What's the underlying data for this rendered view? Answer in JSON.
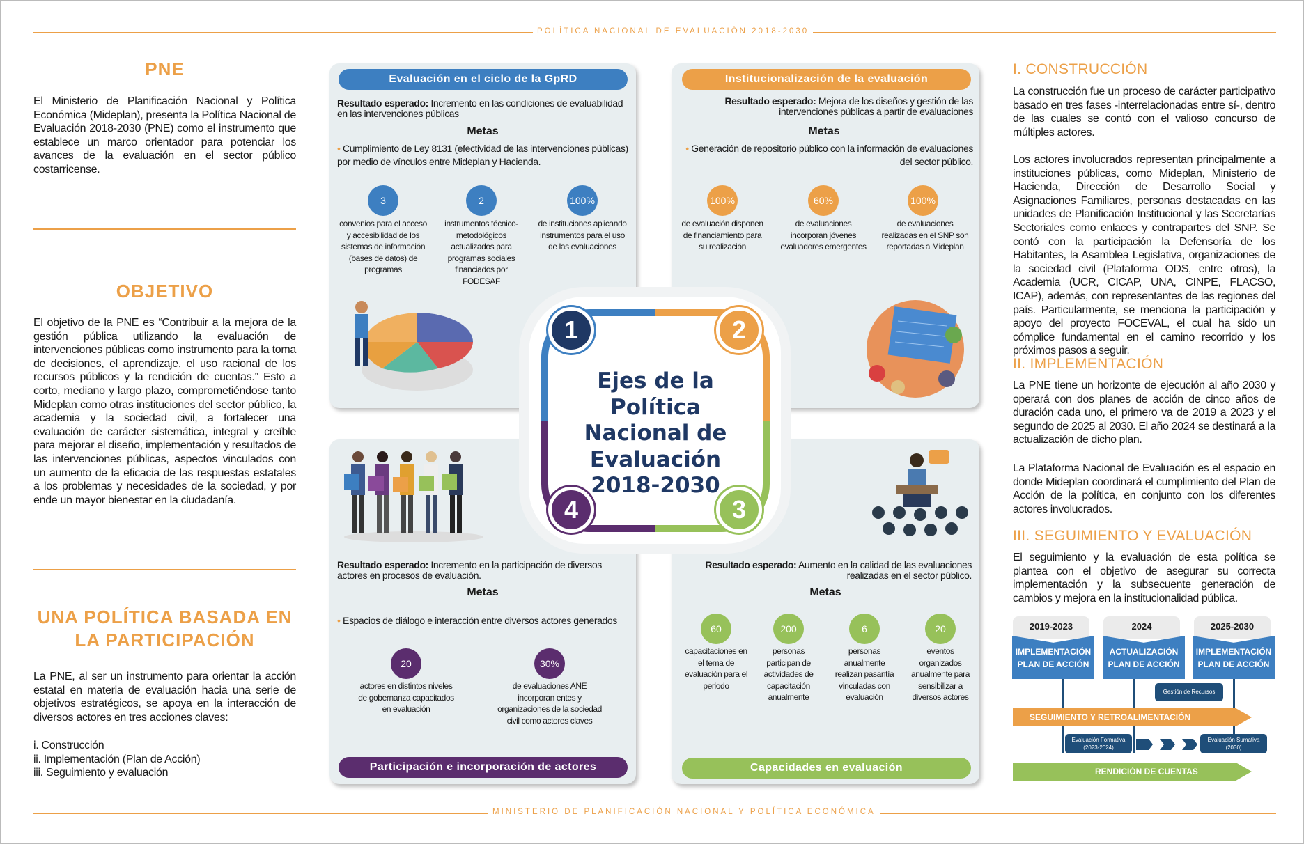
{
  "header": {
    "banner": "POLÍTICA NACIONAL DE EVALUACIÓN 2018-2030"
  },
  "footer": {
    "banner": "MINISTERIO DE PLANIFICACIÓN NACIONAL Y POLÍTICA ECONÓMICA"
  },
  "colors": {
    "accent": "#eca048",
    "blue": "#3d7fc1",
    "orange": "#eca048",
    "purple": "#5b2d6e",
    "green": "#97c15a",
    "navy": "#1f3864"
  },
  "left": {
    "pne_title": "PNE",
    "pne_text": "El Ministerio de Planificación Nacional y Política Económica (Mideplan), presenta la Política Nacional de Evaluación 2018-2030 (PNE) como el instrumento que establece un marco orientador para potenciar los avances de la evaluación en el sector público costarricense.",
    "objetivo_title": "OBJETIVO",
    "objetivo_text": "El objetivo de la PNE es “Contribuir a la mejora de la gestión pública utilizando la evaluación de intervenciones públicas como instrumento para la toma de decisiones, el aprendizaje, el uso racional de los recursos públicos y la rendición de cuentas.” Esto a corto, mediano y largo plazo, comprometiéndose tanto Mideplan como otras instituciones del sector público, la academia y la sociedad civil, a fortalecer una evaluación de carácter sistemática, integral y creíble para mejorar el diseño, implementación y resultados de las intervenciones públicas, aspectos vinculados con un aumento de la eficacia de las respuestas estatales a los problemas y necesidades de la sociedad, y por ende un mayor bienestar en la ciudadanía.",
    "participacion_title": "UNA POLÍTICA BASADA EN LA PARTICIPACIÓN",
    "participacion_text": "La PNE, al ser un instrumento para orientar la acción estatal en materia de evaluación hacia una serie de objetivos estratégicos, se apoya en la interacción de diversos actores en tres acciones claves:",
    "acciones": [
      "i.  Construcción",
      "ii.  Implementación (Plan de Acción)",
      "iii.  Seguimiento y evaluación"
    ]
  },
  "center": {
    "title": "Ejes de la Política Nacional de Evaluación 2018-2030",
    "numbers": [
      "1",
      "2",
      "3",
      "4"
    ]
  },
  "axes": [
    {
      "title": "Evaluación en el ciclo de la GpRD",
      "result_label": "Resultado esperado:",
      "result_text": " Incremento en las condiciones de evaluabilidad en las intervenciones públicas",
      "metas_label": "Metas",
      "goal": "Cumplimiento de Ley 8131 (efectividad de las intervenciones públicas) por medio de vínculos entre Mideplan y Hacienda.",
      "indicators": [
        {
          "value": "3",
          "label": "convenios para el acceso y accesibilidad de los sistemas de información (bases de datos) de programas"
        },
        {
          "value": "2",
          "label": "instrumentos técnico-metodológicos actualizados para programas sociales financiados por FODESAF"
        },
        {
          "value": "100%",
          "label": "de instituciones aplicando instrumentos para el uso de las evaluaciones"
        }
      ]
    },
    {
      "title": "Institucionalización de la evaluación",
      "result_label": "Resultado esperado:",
      "result_text": " Mejora de los diseños y gestión de las intervenciones públicas a partir de evaluaciones",
      "metas_label": "Metas",
      "goal": "Generación de repositorio público con la información de evaluaciones del sector público.",
      "indicators": [
        {
          "value": "100%",
          "label": "de evaluación disponen de financiamiento para su realización"
        },
        {
          "value": "60%",
          "label": "de evaluaciones incorporan jóvenes evaluadores emergentes"
        },
        {
          "value": "100%",
          "label": "de evaluaciones realizadas en el SNP son reportadas a Mideplan"
        }
      ]
    },
    {
      "title": "Capacidades en evaluación",
      "result_label": "Resultado esperado:",
      "result_text": " Aumento en la calidad de las evaluaciones realizadas en el sector público.",
      "metas_label": "Metas",
      "indicators": [
        {
          "value": "60",
          "label": "capacitaciones en el tema de evaluación para el periodo"
        },
        {
          "value": "200",
          "label": "personas participan de actividades de capacitación anualmente"
        },
        {
          "value": "6",
          "label": "personas anualmente realizan pasantía vinculadas con evaluación"
        },
        {
          "value": "20",
          "label": "eventos organizados anualmente para sensibilizar a diversos actores"
        }
      ]
    },
    {
      "title": "Participación e incorporación de actores",
      "result_label": "Resultado esperado:",
      "result_text": " Incremento en la participación de diversos actores en procesos de evaluación.",
      "metas_label": "Metas",
      "goal": "Espacios de diálogo e interacción entre diversos actores generados",
      "indicators": [
        {
          "value": "20",
          "label": "actores en distintos niveles de gobernanza capacitados en evaluación"
        },
        {
          "value": "30%",
          "label": "de evaluaciones ANE incorporan entes y organizaciones de la sociedad civil como actores claves"
        }
      ]
    }
  ],
  "right": {
    "construccion_title": "I. CONSTRUCCIÓN",
    "construccion_p1": "La construcción fue un proceso de carácter participativo basado en tres fases -interrelacionadas entre sí-, dentro de las cuales se contó con el valioso concurso de múltiples actores.",
    "construccion_p2": "Los actores involucrados representan principalmente a instituciones públicas, como Mideplan, Ministerio de Hacienda, Dirección de Desarrollo Social y Asignaciones Familiares, personas destacadas en las unidades de Planificación Institucional y las Secretarías Sectoriales como enlaces y contrapartes del SNP. Se contó con la participación la Defensoría de los Habitantes, la Asamblea Legislativa, organizaciones de la sociedad civil (Plataforma ODS, entre otros), la Academia (UCR, CICAP, UNA, CINPE, FLACSO, ICAP), además, con representantes de las regiones del país. Particularmente, se menciona la participación y apoyo del proyecto FOCEVAL, el cual ha sido un cómplice fundamental en el camino recorrido y los próximos pasos a seguir.",
    "implementacion_title": "II. IMPLEMENTACIÓN",
    "implementacion_p1": "La PNE tiene un horizonte de ejecución al año 2030 y operará con dos planes de acción de cinco años de duración cada uno, el primero va de 2019 a 2023 y el segundo de 2025 al 2030. El año 2024 se destinará a la actualización de dicho plan.",
    "implementacion_p2": "La Plataforma Nacional de Evaluación es el espacio en donde Mideplan coordinará el cumplimiento del Plan de Acción de la política, en conjunto con los diferentes actores involucrados.",
    "seguimiento_title": "III. SEGUIMIENTO Y EVALUACIÓN",
    "seguimiento_p1": "El seguimiento y la evaluación de esta política se plantea con el objetivo de asegurar su correcta implementación y la subsecuente generación de cambios y mejora en la institucionalidad pública."
  },
  "timeline": {
    "periods": [
      {
        "years": "2019-2023",
        "label": "IMPLEMENTACIÓN PLAN DE ACCIÓN"
      },
      {
        "years": "2024",
        "label": "ACTUALIZACIÓN PLAN DE ACCIÓN"
      },
      {
        "years": "2025-2030",
        "label": "IMPLEMENTACIÓN PLAN DE ACCIÓN"
      }
    ],
    "gestion": "Gestión de Recursos",
    "seguimiento": "SEGUIMIENTO Y RETROALIMENTACIÓN",
    "formativa": "Evaluación Formativa",
    "formativa_years": "(2023-2024)",
    "sumativa": "Evaluación Sumativa",
    "sumativa_years": "(2030)",
    "rendicion": "RENDICIÓN DE CUENTAS"
  }
}
